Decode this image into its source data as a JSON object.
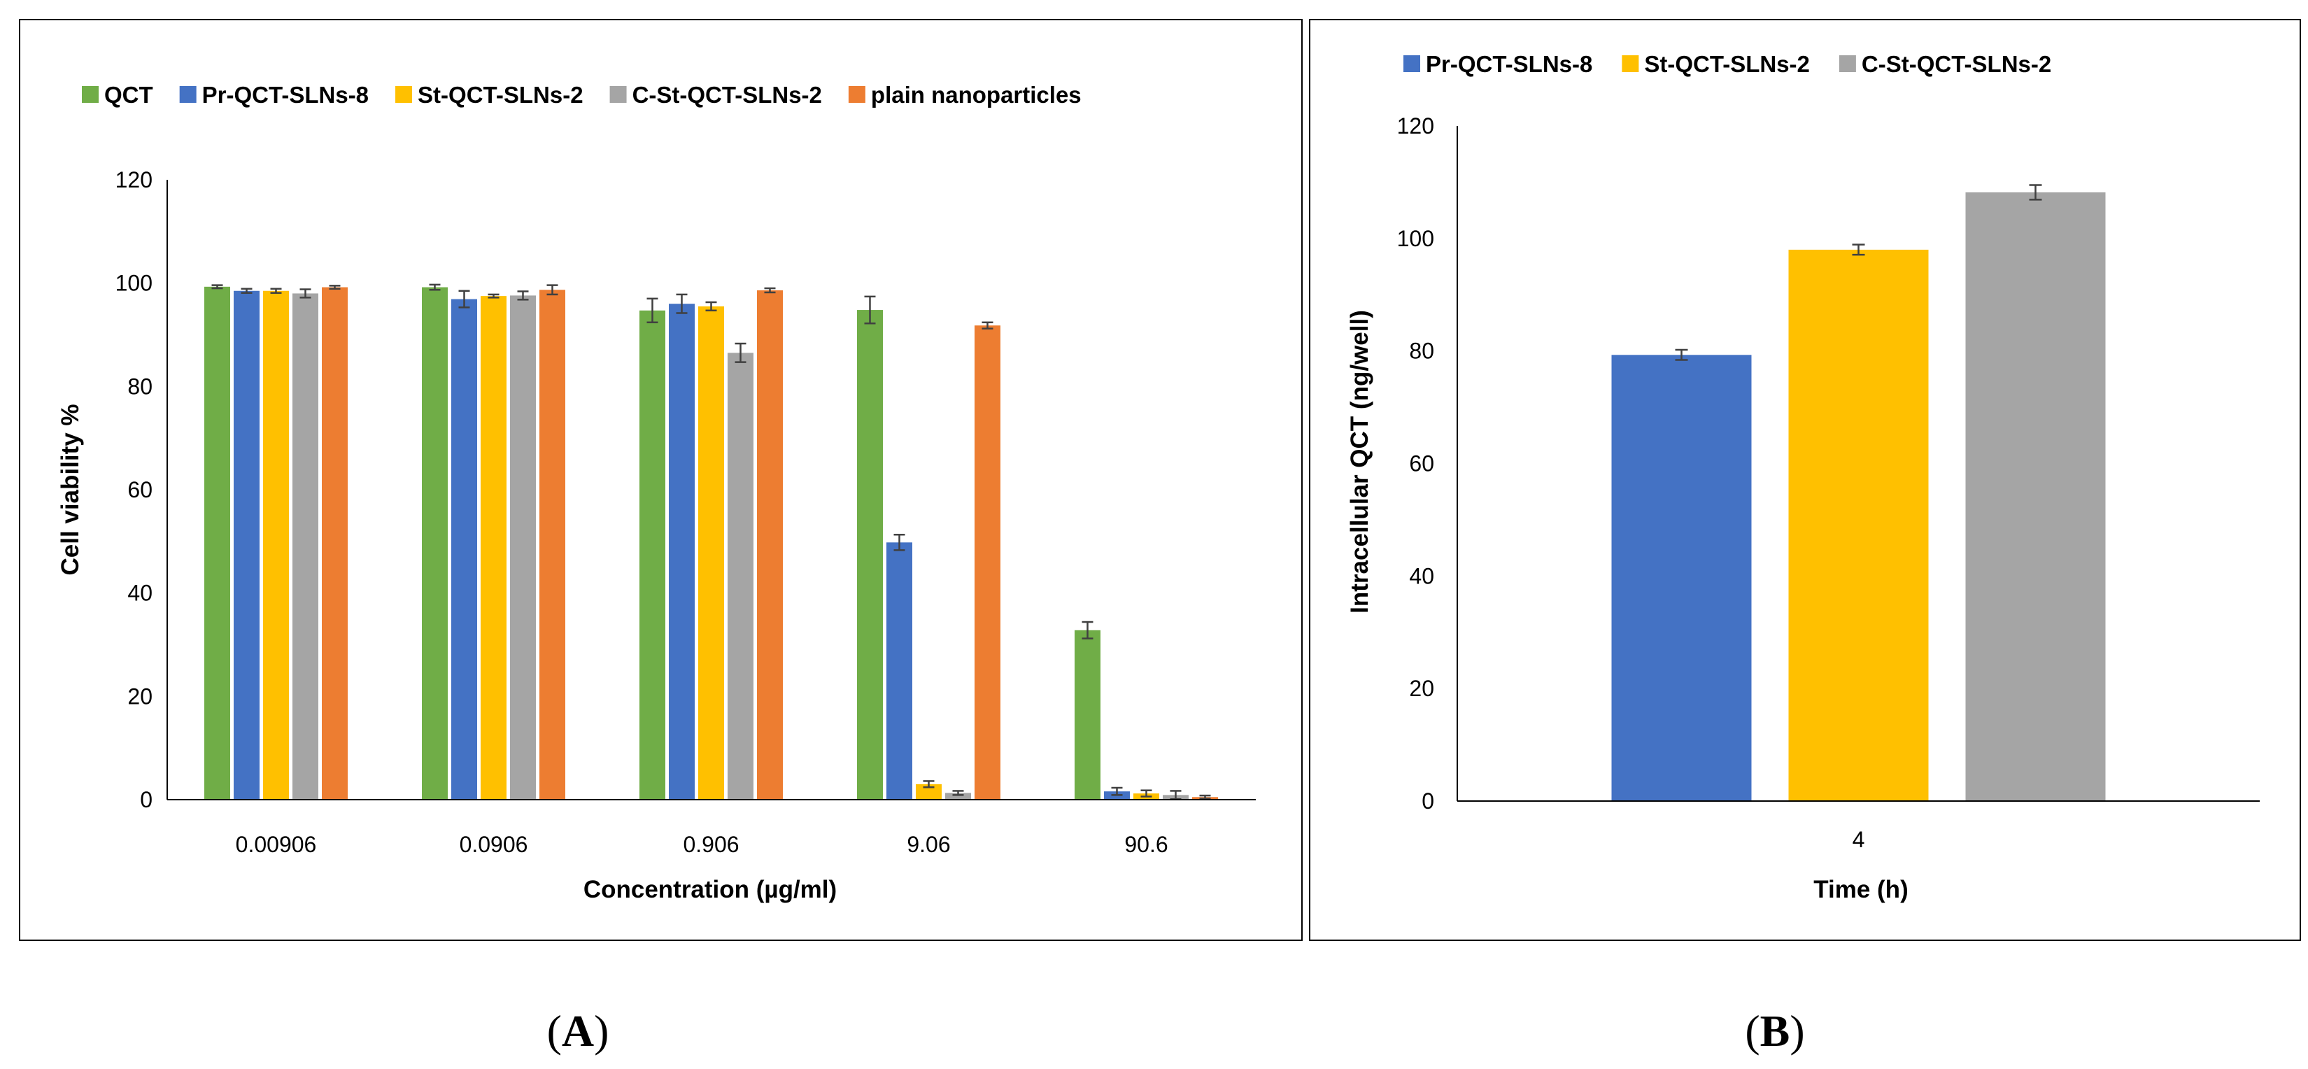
{
  "chart_data": [
    {
      "type": "bar",
      "panel_label": "A",
      "title": "",
      "xlabel": "Concentration (µg/ml)",
      "ylabel": "Cell viability %",
      "ylim": [
        0,
        120
      ],
      "yticks": [
        0,
        20,
        40,
        60,
        80,
        100,
        120
      ],
      "grid": false,
      "legend": "top",
      "categories": [
        "0.00906",
        "0.0906",
        "0.906",
        "9.06",
        "90.6"
      ],
      "series": [
        {
          "name": "QCT",
          "color": "#70AD47",
          "values": [
            99.3,
            99.2,
            94.7,
            94.8,
            32.8
          ],
          "errors": [
            0.3,
            0.5,
            2.3,
            2.6,
            1.6
          ]
        },
        {
          "name": "Pr-QCT-SLNs-8",
          "color": "#4472C4",
          "values": [
            98.5,
            96.9,
            96.0,
            49.8,
            1.6
          ],
          "errors": [
            0.4,
            1.6,
            1.8,
            1.5,
            0.7
          ]
        },
        {
          "name": "St-QCT-SLNs-2",
          "color": "#FFC000",
          "values": [
            98.5,
            97.5,
            95.5,
            3.0,
            1.2
          ],
          "errors": [
            0.4,
            0.3,
            0.8,
            0.6,
            0.6
          ]
        },
        {
          "name": "C-St-QCT-SLNs-2",
          "color": "#A5A5A5",
          "values": [
            98.0,
            97.6,
            86.5,
            1.3,
            0.9
          ],
          "errors": [
            0.8,
            0.8,
            1.8,
            0.4,
            0.8
          ]
        },
        {
          "name": "plain nanoparticles",
          "color": "#ED7D31",
          "values": [
            99.2,
            98.7,
            98.6,
            91.8,
            0.5
          ],
          "errors": [
            0.3,
            0.9,
            0.4,
            0.6,
            0.3
          ]
        }
      ]
    },
    {
      "type": "bar",
      "panel_label": "B",
      "title": "",
      "xlabel": "Time (h)",
      "ylabel": "Intracellular QCT (ng/well)",
      "ylim": [
        0,
        120
      ],
      "yticks": [
        0,
        20,
        40,
        60,
        80,
        100,
        120
      ],
      "grid": false,
      "legend": "top",
      "categories": [
        "4"
      ],
      "series": [
        {
          "name": "Pr-QCT-SLNs-8",
          "color": "#4472C4",
          "values": [
            79.3
          ],
          "errors": [
            0.9
          ]
        },
        {
          "name": "St-QCT-SLNs-2",
          "color": "#FFC000",
          "values": [
            98.0
          ],
          "errors": [
            0.9
          ]
        },
        {
          "name": "C-St-QCT-SLNs-2",
          "color": "#A5A5A5",
          "values": [
            108.2
          ],
          "errors": [
            1.3
          ]
        }
      ]
    }
  ]
}
